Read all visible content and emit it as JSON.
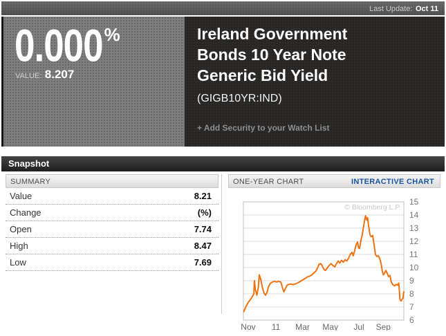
{
  "header": {
    "last_update_label": "Last Update:",
    "last_update_value": "Oct 11"
  },
  "hero": {
    "change_percent": "0.000",
    "percent_sign": "%",
    "value_label": "VALUE:",
    "value": "8.207",
    "title_lines": [
      "Ireland Government",
      "Bonds 10 Year Note",
      "Generic Bid Yield"
    ],
    "symbol": "(GIGB10YR:IND)",
    "watchlist_link": "+ Add Security to your Watch List"
  },
  "snapshot": {
    "title": "Snapshot"
  },
  "summary": {
    "header": "SUMMARY",
    "rows": [
      {
        "label": "Value",
        "value": "8.21"
      },
      {
        "label": "Change",
        "value": "(%)"
      },
      {
        "label": "Open",
        "value": "7.74"
      },
      {
        "label": "High",
        "value": "8.47"
      },
      {
        "label": "Low",
        "value": "7.69"
      }
    ]
  },
  "chart_section": {
    "header": "ONE-YEAR CHART",
    "interactive_link": "INTERACTIVE CHART"
  },
  "chart_data": {
    "type": "line",
    "title": "One-year chart, Ireland 10 Year Government Bond Generic Bid Yield",
    "watermark": "© Bloomberg L.P.",
    "ylim": [
      6,
      15
    ],
    "y_ticks": [
      6,
      7,
      8,
      9,
      10,
      11,
      12,
      13,
      14,
      15
    ],
    "x_tick_labels": [
      "Nov",
      "11",
      "Mar",
      "May",
      "Jul",
      "Sep"
    ],
    "x_tick_positions": [
      0.03,
      0.203,
      0.369,
      0.542,
      0.72,
      0.872
    ],
    "line_color": "#ee7211",
    "grid": true,
    "legend": "none",
    "points": [
      [
        0.002,
        6.65
      ],
      [
        0.017,
        7.05
      ],
      [
        0.03,
        7.35
      ],
      [
        0.043,
        7.55
      ],
      [
        0.056,
        7.8
      ],
      [
        0.065,
        8.0
      ],
      [
        0.069,
        9.0
      ],
      [
        0.075,
        8.3
      ],
      [
        0.084,
        7.9
      ],
      [
        0.093,
        8.5
      ],
      [
        0.099,
        9.45
      ],
      [
        0.108,
        9.1
      ],
      [
        0.119,
        8.45
      ],
      [
        0.129,
        8.05
      ],
      [
        0.138,
        7.9
      ],
      [
        0.147,
        8.1
      ],
      [
        0.157,
        8.55
      ],
      [
        0.168,
        8.8
      ],
      [
        0.181,
        8.9
      ],
      [
        0.194,
        8.95
      ],
      [
        0.207,
        8.9
      ],
      [
        0.22,
        8.95
      ],
      [
        0.233,
        8.9
      ],
      [
        0.244,
        8.45
      ],
      [
        0.252,
        8.15
      ],
      [
        0.261,
        8.4
      ],
      [
        0.272,
        8.65
      ],
      [
        0.284,
        8.72
      ],
      [
        0.297,
        8.75
      ],
      [
        0.31,
        8.7
      ],
      [
        0.323,
        8.75
      ],
      [
        0.336,
        8.82
      ],
      [
        0.349,
        8.9
      ],
      [
        0.362,
        9.0
      ],
      [
        0.375,
        9.1
      ],
      [
        0.388,
        9.2
      ],
      [
        0.401,
        9.3
      ],
      [
        0.414,
        9.35
      ],
      [
        0.427,
        9.45
      ],
      [
        0.44,
        9.6
      ],
      [
        0.453,
        9.75
      ],
      [
        0.463,
        10.0
      ],
      [
        0.472,
        10.25
      ],
      [
        0.481,
        10.3
      ],
      [
        0.489,
        10.2
      ],
      [
        0.5,
        9.9
      ],
      [
        0.511,
        9.78
      ],
      [
        0.522,
        9.95
      ],
      [
        0.534,
        10.15
      ],
      [
        0.547,
        10.3
      ],
      [
        0.558,
        10.15
      ],
      [
        0.569,
        10.05
      ],
      [
        0.58,
        10.3
      ],
      [
        0.591,
        10.5
      ],
      [
        0.601,
        10.35
      ],
      [
        0.612,
        10.55
      ],
      [
        0.623,
        10.4
      ],
      [
        0.634,
        10.6
      ],
      [
        0.644,
        10.5
      ],
      [
        0.655,
        10.7
      ],
      [
        0.666,
        11.0
      ],
      [
        0.677,
        11.15
      ],
      [
        0.685,
        10.9
      ],
      [
        0.694,
        11.3
      ],
      [
        0.703,
        11.75
      ],
      [
        0.711,
        11.95
      ],
      [
        0.718,
        11.5
      ],
      [
        0.724,
        11.45
      ],
      [
        0.733,
        12.1
      ],
      [
        0.741,
        12.5
      ],
      [
        0.75,
        13.2
      ],
      [
        0.761,
        13.95
      ],
      [
        0.77,
        13.6
      ],
      [
        0.774,
        13.8
      ],
      [
        0.78,
        13.2
      ],
      [
        0.789,
        12.5
      ],
      [
        0.797,
        12.35
      ],
      [
        0.806,
        12.45
      ],
      [
        0.815,
        11.7
      ],
      [
        0.823,
        11.0
      ],
      [
        0.832,
        10.85
      ],
      [
        0.841,
        10.9
      ],
      [
        0.849,
        10.7
      ],
      [
        0.858,
        10.3
      ],
      [
        0.866,
        9.7
      ],
      [
        0.873,
        9.45
      ],
      [
        0.879,
        9.55
      ],
      [
        0.888,
        9.78
      ],
      [
        0.897,
        9.55
      ],
      [
        0.905,
        9.3
      ],
      [
        0.914,
        9.4
      ],
      [
        0.922,
        8.9
      ],
      [
        0.931,
        8.7
      ],
      [
        0.942,
        8.6
      ],
      [
        0.953,
        8.72
      ],
      [
        0.961,
        8.65
      ],
      [
        0.968,
        8.82
      ],
      [
        0.972,
        8.3
      ],
      [
        0.976,
        7.55
      ],
      [
        0.983,
        7.45
      ],
      [
        0.989,
        7.6
      ],
      [
        0.994,
        7.65
      ],
      [
        1.0,
        8.15
      ]
    ]
  },
  "colors": {
    "accent_orange": "#ee7211",
    "link_blue": "#19559f",
    "hero_left_bg": "#7e7e7e",
    "hero_right_bg": "#282624"
  }
}
